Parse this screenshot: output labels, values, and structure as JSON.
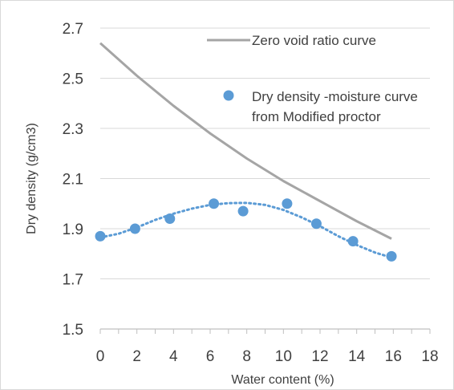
{
  "chart_data": {
    "type": "scatter",
    "xlabel": "Water content (%)",
    "ylabel": "Dry density (g/cm3)",
    "xlim": [
      0,
      18
    ],
    "ylim": [
      1.5,
      2.7
    ],
    "x_ticks": [
      "0",
      "2",
      "4",
      "6",
      "8",
      "10",
      "12",
      "14",
      "16",
      "18"
    ],
    "y_ticks": [
      "1.5",
      "1.7",
      "1.9",
      "2.1",
      "2.3",
      "2.5",
      "2.7"
    ],
    "grid": "horizontal",
    "legend_position": "top-right",
    "series": [
      {
        "name": "Zero void ratio curve",
        "kind": "line",
        "color": "#a5a5a5",
        "x": [
          0,
          2,
          4,
          6,
          8,
          10,
          12,
          14,
          15.9
        ],
        "y": [
          2.64,
          2.51,
          2.39,
          2.28,
          2.18,
          2.09,
          2.01,
          1.93,
          1.86
        ]
      },
      {
        "name": "Dry density -moisture curve from Modified proctor",
        "legend_lines": [
          "Dry density -moisture curve",
          "from Modified proctor"
        ],
        "kind": "scatter",
        "color": "#5b9bd5",
        "x": [
          0,
          1.9,
          3.8,
          6.2,
          7.8,
          10.2,
          11.8,
          13.8,
          15.9
        ],
        "y": [
          1.87,
          1.9,
          1.94,
          2.0,
          1.97,
          2.0,
          1.92,
          1.85,
          1.79
        ]
      }
    ],
    "trendline": {
      "kind": "dotted-polynomial",
      "color": "#5b9bd5",
      "x": [
        0,
        1,
        2,
        3,
        4,
        5,
        6,
        7,
        8,
        9,
        10,
        11,
        12,
        13,
        14,
        15,
        15.9
      ],
      "y": [
        1.865,
        1.88,
        1.905,
        1.935,
        1.96,
        1.98,
        1.995,
        2.002,
        2.003,
        1.995,
        1.975,
        1.945,
        1.91,
        1.87,
        1.835,
        1.805,
        1.785
      ]
    }
  }
}
